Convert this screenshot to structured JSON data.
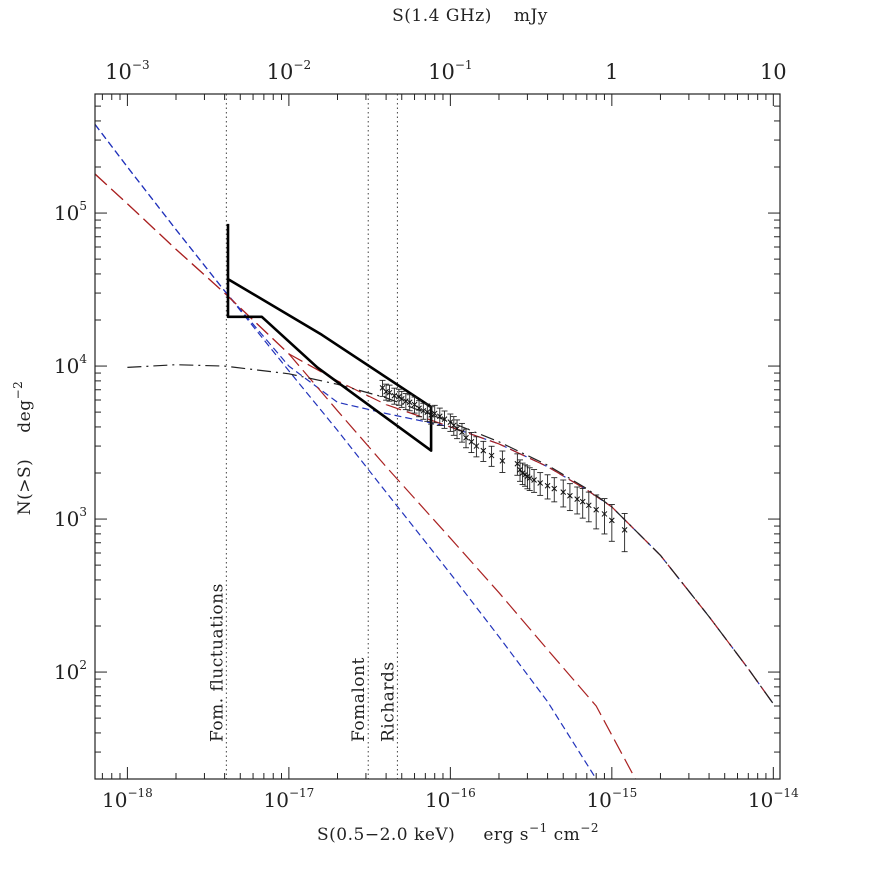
{
  "chart_data": {
    "type": "line",
    "title": "",
    "xlabel": "S(0.5−2.0 keV)",
    "xlabel_units": {
      "base1": "erg s",
      "exp1": "−1",
      "base2": " cm",
      "exp2": "−2"
    },
    "x2label": "S(1.4 GHz)",
    "x2label_units": "mJy",
    "ylabel": "N(>S)",
    "ylabel_units": {
      "base": "deg",
      "exp": "−2"
    },
    "xscale": "log",
    "yscale": "log",
    "xlim": [
      6.3e-19,
      1.1e-14
    ],
    "ylim": [
      20,
      600000
    ],
    "x_ticks": [
      {
        "value": 1e-18,
        "base": "10",
        "exp": "−18"
      },
      {
        "value": 1e-17,
        "base": "10",
        "exp": "−17"
      },
      {
        "value": 1e-16,
        "base": "10",
        "exp": "−16"
      },
      {
        "value": 1e-15,
        "base": "10",
        "exp": "−15"
      },
      {
        "value": 1e-14,
        "base": "10",
        "exp": "−14"
      }
    ],
    "y_ticks": [
      {
        "value": 100,
        "base": "10",
        "exp": "2"
      },
      {
        "value": 1000,
        "base": "10",
        "exp": "3"
      },
      {
        "value": 10000,
        "base": "10",
        "exp": "4"
      },
      {
        "value": 100000,
        "base": "10",
        "exp": "5"
      }
    ],
    "x2_ticks": [
      {
        "value": 1e-18,
        "base": "10",
        "exp": "−3"
      },
      {
        "value": 1e-17,
        "base": "10",
        "exp": "−2"
      },
      {
        "value": 1e-16,
        "base": "10",
        "exp": "−1"
      },
      {
        "value": 1e-15,
        "base": "1",
        "exp": ""
      },
      {
        "value": 1e-14,
        "base": "10",
        "exp": ""
      }
    ],
    "vertical_lines": [
      {
        "x": 4.1e-18,
        "label": "Fom. fluctuations"
      },
      {
        "x": 3.1e-17,
        "label": "Fomalont"
      },
      {
        "x": 4.7e-17,
        "label": "Richards"
      }
    ],
    "series": [
      {
        "style": "dashed",
        "color": "#2233bb",
        "x": [
          6.3e-19,
          1e-18,
          2e-18,
          4e-18,
          1e-17,
          2e-17,
          4e-17,
          1e-16,
          2e-16,
          4e-16,
          7e-16,
          1e-15,
          2e-15,
          4e-15,
          7e-15,
          1e-14
        ],
        "y": [
          380000,
          200000,
          78000,
          31000,
          10000,
          5800,
          4900,
          4000,
          3100,
          2200,
          1550,
          1200,
          580,
          230,
          105,
          62
        ]
      },
      {
        "style": "dashed",
        "color": "#2233bb",
        "x": [
          6.3e-19,
          1e-18,
          2e-18,
          4e-18,
          1e-17,
          2e-17,
          4e-17,
          1e-16,
          2e-16,
          4e-16,
          8e-16
        ],
        "y": [
          380000,
          200000,
          78000,
          31000,
          9300,
          3800,
          1500,
          440,
          170,
          64,
          20
        ]
      },
      {
        "style": "long-dashed",
        "color": "#aa2222",
        "x": [
          6.3e-19,
          1e-18,
          2e-18,
          4e-18,
          1e-17,
          2e-17,
          4e-17,
          1e-16,
          2e-16,
          4e-16,
          7e-16,
          1e-15,
          2e-15,
          4e-15,
          7e-15,
          1e-14
        ],
        "y": [
          180000,
          115000,
          58000,
          30000,
          12000,
          8000,
          5600,
          4000,
          3100,
          2200,
          1550,
          1200,
          580,
          230,
          105,
          62
        ]
      },
      {
        "style": "long-dashed",
        "color": "#aa2222",
        "x": [
          6.3e-19,
          1e-18,
          2e-18,
          4e-18,
          1e-17,
          2e-17,
          4e-17,
          1e-16,
          2e-16,
          4e-16,
          8e-16,
          1.4e-15
        ],
        "y": [
          180000,
          115000,
          58000,
          30000,
          12000,
          5100,
          2200,
          750,
          330,
          140,
          60,
          20
        ]
      },
      {
        "style": "dash-dot",
        "color": "#222222",
        "x": [
          1e-18,
          2e-18,
          4e-18,
          1e-17,
          2e-17,
          4e-17,
          1e-16,
          2e-16,
          4e-16,
          7e-16,
          1e-15,
          2e-15,
          4e-15,
          7e-15,
          1e-14
        ],
        "y": [
          9800,
          10200,
          10000,
          8900,
          7600,
          6200,
          4300,
          3200,
          2250,
          1580,
          1200,
          580,
          230,
          105,
          62
        ]
      },
      {
        "style": "solid-bold",
        "color": "#000000",
        "x": [
          4.2e-18,
          4.2e-18,
          1.6e-17,
          7.6e-17,
          7.6e-17,
          1.5e-17,
          6.8e-18,
          4.2e-18,
          4.2e-18
        ],
        "y": [
          85000,
          37000,
          16000,
          5400,
          2800,
          9800,
          21000,
          21000,
          85000
        ]
      }
    ],
    "points": {
      "marker": "x",
      "x": [
        3.8e-17,
        4e-17,
        4.2e-17,
        4.5e-17,
        4.8e-17,
        5e-17,
        5.3e-17,
        5.6e-17,
        6e-17,
        6.4e-17,
        6.8e-17,
        7.2e-17,
        7.6e-17,
        8e-17,
        8.6e-17,
        9.2e-17,
        1e-16,
        1.05e-16,
        1.1e-16,
        1.18e-16,
        1.25e-16,
        1.35e-16,
        1.45e-16,
        1.6e-16,
        1.8e-16,
        2.1e-16,
        2.6e-16,
        2.7e-16,
        2.8e-16,
        2.9e-16,
        3e-16,
        3.1e-16,
        3.3e-16,
        3.6e-16,
        4e-16,
        4.4e-16,
        5e-16,
        5.5e-16,
        6.1e-16,
        6.6e-16,
        7.2e-16,
        8e-16,
        9e-16,
        1e-15,
        1.2e-15
      ],
      "y": [
        7200,
        6800,
        6700,
        6400,
        6300,
        6100,
        5900,
        5800,
        5600,
        5300,
        5100,
        5000,
        4800,
        4900,
        4700,
        4500,
        4300,
        4100,
        3900,
        3700,
        3400,
        3200,
        3000,
        2800,
        2600,
        2400,
        2300,
        2100,
        2000,
        1950,
        1900,
        1850,
        1800,
        1720,
        1650,
        1580,
        1500,
        1420,
        1350,
        1300,
        1230,
        1150,
        1080,
        980,
        850
      ],
      "err_frac": [
        0.12,
        0.12,
        0.12,
        0.12,
        0.12,
        0.12,
        0.12,
        0.12,
        0.12,
        0.12,
        0.12,
        0.13,
        0.13,
        0.13,
        0.13,
        0.13,
        0.13,
        0.14,
        0.14,
        0.14,
        0.14,
        0.15,
        0.15,
        0.15,
        0.15,
        0.16,
        0.16,
        0.16,
        0.16,
        0.16,
        0.17,
        0.17,
        0.17,
        0.17,
        0.18,
        0.18,
        0.2,
        0.2,
        0.2,
        0.22,
        0.22,
        0.25,
        0.26,
        0.27,
        0.28
      ]
    },
    "grid": false,
    "legend": "none"
  }
}
